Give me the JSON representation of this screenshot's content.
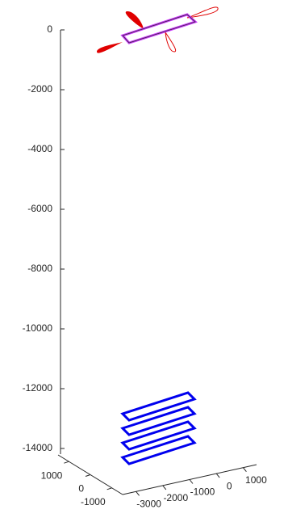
{
  "chart_data": {
    "type": "plot3",
    "xlim": [
      -3500,
      1500
    ],
    "xticks": [
      -3000,
      -2000,
      -1000,
      0,
      1000
    ],
    "ylim": [
      -1500,
      1500
    ],
    "yticks": [
      1000,
      0,
      -1000
    ],
    "zlim": [
      -14000,
      0
    ],
    "zticks": [
      0,
      -2000,
      -4000,
      -6000,
      -8000,
      -10000,
      -12000,
      -14000
    ]
  }
}
